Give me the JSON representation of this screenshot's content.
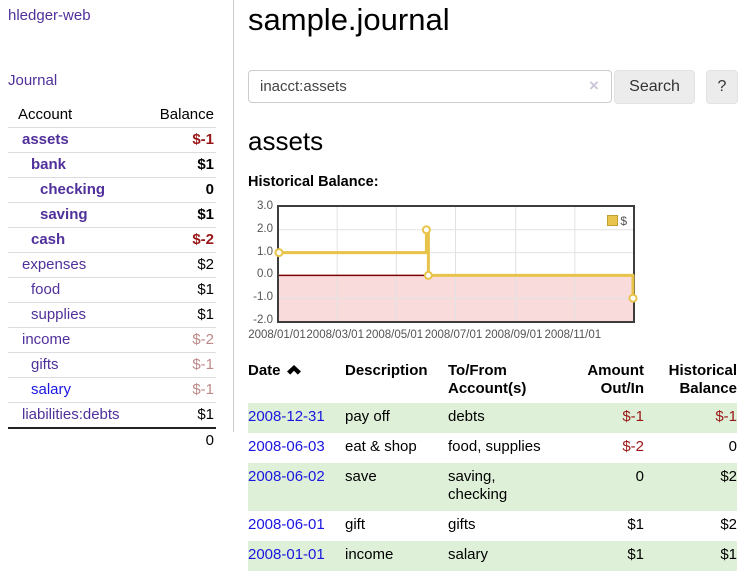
{
  "sidebar": {
    "brand": "hledger-web",
    "nav": {
      "journal_label": "Journal"
    },
    "accounts_table": {
      "headers": {
        "account": "Account",
        "balance": "Balance"
      },
      "rows": [
        {
          "name": "assets",
          "indent": 1,
          "bold": true,
          "balance": "$-1",
          "balance_class": "neg",
          "link_class": "purple"
        },
        {
          "name": "bank",
          "indent": 2,
          "bold": true,
          "balance": "$1",
          "balance_class": "",
          "link_class": "purple"
        },
        {
          "name": "checking",
          "indent": 3,
          "bold": true,
          "balance": "0",
          "balance_class": "",
          "link_class": "purple"
        },
        {
          "name": "saving",
          "indent": 3,
          "bold": true,
          "balance": "$1",
          "balance_class": "",
          "link_class": "purple"
        },
        {
          "name": "cash",
          "indent": 2,
          "bold": true,
          "balance": "$-2",
          "balance_class": "neg",
          "link_class": "purple"
        },
        {
          "name": "expenses",
          "indent": 1,
          "bold": false,
          "balance": "$2",
          "balance_class": "",
          "link_class": "purple"
        },
        {
          "name": "food",
          "indent": 2,
          "bold": false,
          "balance": "$1",
          "balance_class": "",
          "link_class": "purple"
        },
        {
          "name": "supplies",
          "indent": 2,
          "bold": false,
          "balance": "$1",
          "balance_class": "",
          "link_class": "purple"
        },
        {
          "name": "income",
          "indent": 1,
          "bold": false,
          "balance": "$-2",
          "balance_class": "neg-muted",
          "link_class": "purple"
        },
        {
          "name": "gifts",
          "indent": 2,
          "bold": false,
          "balance": "$-1",
          "balance_class": "neg-muted",
          "link_class": "purple"
        },
        {
          "name": "salary",
          "indent": 2,
          "bold": false,
          "balance": "$-1",
          "balance_class": "neg-muted",
          "link_class": "blue"
        },
        {
          "name": "liabilities:debts",
          "indent": 1,
          "bold": false,
          "balance": "$1",
          "balance_class": "",
          "link_class": "purple"
        }
      ],
      "total": "0"
    }
  },
  "main": {
    "title": "sample.journal",
    "search": {
      "value": "inacct:assets",
      "clear_icon": "×",
      "button_label": "Search",
      "help_label": "?"
    },
    "account_heading": "assets",
    "chart_heading": "Historical Balance:"
  },
  "chart_data": {
    "type": "line",
    "title": "Historical Balance",
    "step": true,
    "series": [
      {
        "name": "$",
        "color": "#e8c34a",
        "points": [
          [
            "2008-01-01",
            1.0
          ],
          [
            "2008-06-01",
            2.0
          ],
          [
            "2008-06-02",
            2.0
          ],
          [
            "2008-06-03",
            0.0
          ],
          [
            "2008-12-31",
            -1.0
          ]
        ]
      }
    ],
    "xrange": [
      "2008-01-01",
      "2008-12-31"
    ],
    "ylim": [
      -2.0,
      3.0
    ],
    "ytick_values": [
      3,
      2,
      1,
      0,
      -1,
      -2
    ],
    "yticks": [
      "3.0",
      "2.0",
      "1.0",
      "0.0",
      "-1.0",
      "-2.0"
    ],
    "xticks": [
      {
        "label": "2008/01/01",
        "date": "2008-01-01"
      },
      {
        "label": "2008/03/01",
        "date": "2008-03-01"
      },
      {
        "label": "2008/05/01",
        "date": "2008-05-01"
      },
      {
        "label": "2008/07/01",
        "date": "2008-07-01"
      },
      {
        "label": "2008/09/01",
        "date": "2008-09-01"
      },
      {
        "label": "2008/11/01",
        "date": "2008-11-01"
      }
    ],
    "legend": {
      "label": "$",
      "position": "top-right"
    },
    "grid": true,
    "negative_region_color": "#f9dbdb",
    "zero_line_color": "#7c0000"
  },
  "register": {
    "headers": {
      "date": "Date",
      "description": "Description",
      "accounts": "To/From Account(s)",
      "amount": "Amount Out/In",
      "balance": "Historical Balance"
    },
    "sort": {
      "column": "date",
      "direction": "asc"
    },
    "rows": [
      {
        "date": "2008-12-31",
        "description": "pay off",
        "accounts": "debts",
        "amount": "$-1",
        "amount_class": "neg",
        "balance": "$-1",
        "balance_class": "neg",
        "shaded": true
      },
      {
        "date": "2008-06-03",
        "description": "eat & shop",
        "accounts": "food, supplies",
        "amount": "$-2",
        "amount_class": "neg",
        "balance": "0",
        "balance_class": "",
        "shaded": false
      },
      {
        "date": "2008-06-02",
        "description": "save",
        "accounts": "saving, checking",
        "amount": "0",
        "amount_class": "",
        "balance": "$2",
        "balance_class": "",
        "shaded": true
      },
      {
        "date": "2008-06-01",
        "description": "gift",
        "accounts": "gifts",
        "amount": "$1",
        "amount_class": "",
        "balance": "$2",
        "balance_class": "",
        "shaded": false
      },
      {
        "date": "2008-01-01",
        "description": "income",
        "accounts": "salary",
        "amount": "$1",
        "amount_class": "",
        "balance": "$1",
        "balance_class": "",
        "shaded": true
      }
    ]
  }
}
